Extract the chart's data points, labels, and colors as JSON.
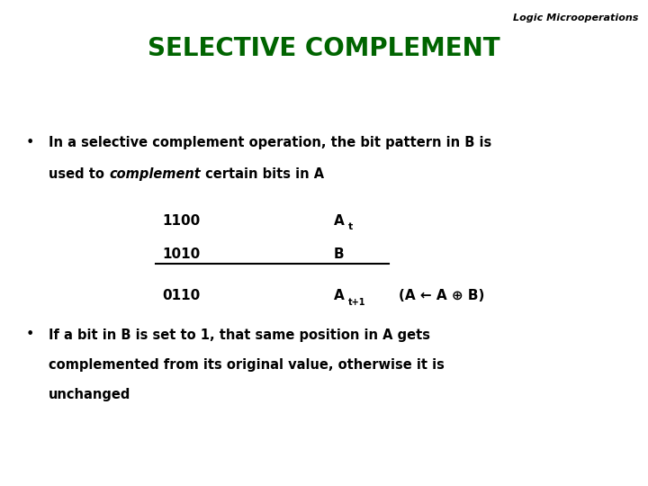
{
  "background_color": "#ffffff",
  "header_label": "Logic Microoperations",
  "title": "SELECTIVE COMPLEMENT",
  "title_color": "#006400",
  "title_fontsize": 20,
  "header_fontsize": 8,
  "bullet1_line1": "In a selective complement operation, the bit pattern in B is",
  "bullet1_line2_prefix": "used to ",
  "bullet1_line2_italic": "complement",
  "bullet1_line2_suffix": " certain bits in A",
  "row1_bits": "1100",
  "row1_label": "A",
  "row1_sub": "t",
  "row2_bits": "1010",
  "row2_label": "B",
  "row3_bits": "0110",
  "row3_label": "A",
  "row3_sub": "t+1",
  "row3_formula": "(A ← A ⊕ B)",
  "bullet2_line1": "If a bit in B is set to 1, that same position in A gets",
  "bullet2_line2": "complemented from its original value, otherwise it is",
  "bullet2_line3": "unchanged",
  "text_color": "#000000",
  "bits_fontsize": 11,
  "body_fontsize": 10.5
}
